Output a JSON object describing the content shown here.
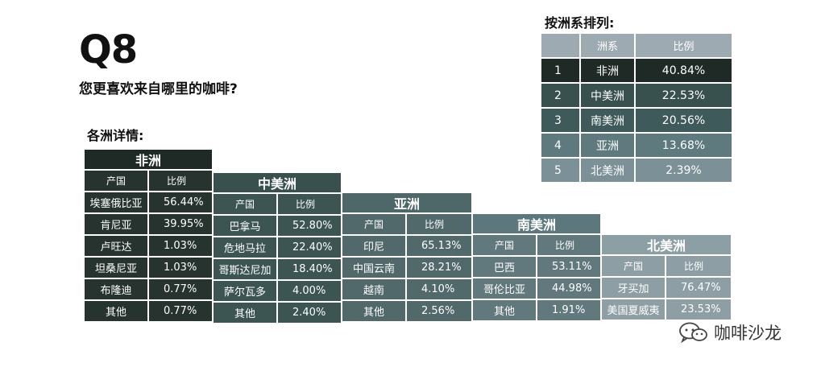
{
  "question_id": "Q8",
  "question_text": "您更喜欢来自哪里的咖啡?",
  "detail_label": "各洲详情:",
  "rank_label": "按洲系排列:",
  "watermark_text": "咖啡沙龙",
  "chart_data": [
    {
      "type": "table",
      "title": "按洲系排列:",
      "columns": [
        "",
        "洲系",
        "比例"
      ],
      "rows": [
        {
          "rank": "1",
          "continent": "非洲",
          "share": "40.84%",
          "color": "#1f2a27"
        },
        {
          "rank": "2",
          "continent": "中美洲",
          "share": "22.53%",
          "color": "#38514f"
        },
        {
          "rank": "3",
          "continent": "南美洲",
          "share": "20.56%",
          "color": "#3e5a5b"
        },
        {
          "rank": "4",
          "continent": "亚洲",
          "share": "13.68%",
          "color": "#5e7a7e"
        },
        {
          "rank": "5",
          "continent": "北美洲",
          "share": "2.39%",
          "color": "#7c9197"
        }
      ]
    },
    {
      "type": "table",
      "title": "非洲",
      "columns": [
        "产国",
        "比例"
      ],
      "rows": [
        {
          "country": "埃塞俄比亚",
          "share": "56.44%"
        },
        {
          "country": "肯尼亚",
          "share": "39.95%"
        },
        {
          "country": "卢旺达",
          "share": "1.03%"
        },
        {
          "country": "坦桑尼亚",
          "share": "1.03%"
        },
        {
          "country": "布隆迪",
          "share": "0.77%"
        },
        {
          "country": "其他",
          "share": "0.77%"
        }
      ],
      "header_color": "#1f2a27",
      "cell_color": "#27332f"
    },
    {
      "type": "table",
      "title": "中美洲",
      "columns": [
        "产国",
        "比例"
      ],
      "rows": [
        {
          "country": "巴拿马",
          "share": "52.80%"
        },
        {
          "country": "危地马拉",
          "share": "22.40%"
        },
        {
          "country": "哥斯达尼加",
          "share": "18.40%"
        },
        {
          "country": "萨尔瓦多",
          "share": "4.00%"
        },
        {
          "country": "其他",
          "share": "2.40%"
        }
      ],
      "header_color": "#38514f",
      "cell_color": "#3c5553"
    },
    {
      "type": "table",
      "title": "亚洲",
      "columns": [
        "产国",
        "比例"
      ],
      "rows": [
        {
          "country": "印尼",
          "share": "65.13%"
        },
        {
          "country": "中国云南",
          "share": "28.21%"
        },
        {
          "country": "越南",
          "share": "4.10%"
        },
        {
          "country": "其他",
          "share": "2.56%"
        }
      ],
      "header_color": "#4e6769",
      "cell_color": "#52696b"
    },
    {
      "type": "table",
      "title": "南美洲",
      "columns": [
        "产国",
        "比例"
      ],
      "rows": [
        {
          "country": "巴西",
          "share": "53.11%"
        },
        {
          "country": "哥伦比亚",
          "share": "44.98%"
        },
        {
          "country": "其他",
          "share": "1.91%"
        }
      ],
      "header_color": "#5d787c",
      "cell_color": "#61787c"
    },
    {
      "type": "table",
      "title": "北美洲",
      "columns": [
        "产国",
        "比例"
      ],
      "rows": [
        {
          "country": "牙买加",
          "share": "76.47%"
        },
        {
          "country": "美国夏威夷",
          "share": "23.53%"
        }
      ],
      "header_color": "#8c9fa5",
      "cell_color": "#8d9ea4"
    }
  ]
}
